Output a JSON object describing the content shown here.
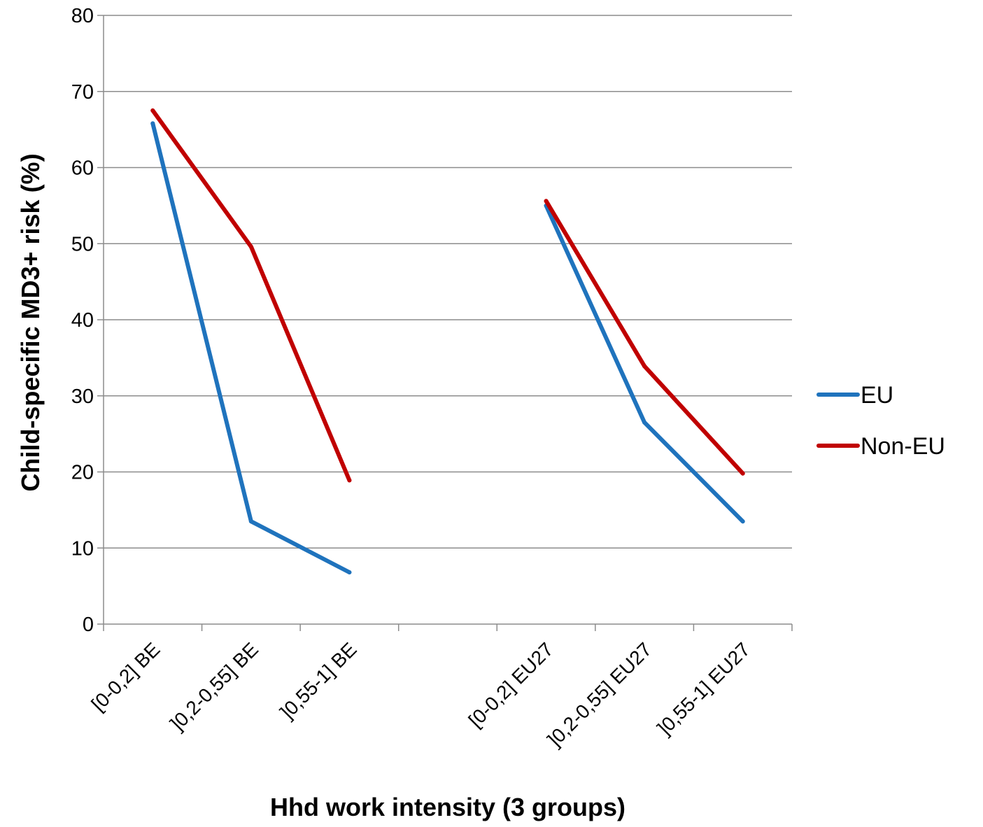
{
  "chart_data": {
    "type": "line",
    "title": "",
    "xlabel": "Hhd work intensity (3 groups)",
    "ylabel": "Child-specific MD3+ risk (%)",
    "ylim": [
      0,
      80
    ],
    "yticks": [
      0,
      10,
      20,
      30,
      40,
      50,
      60,
      70,
      80
    ],
    "grid": "horizontal",
    "legend_position": "right",
    "categories": [
      "[0-0,2] BE",
      "]0,2-0,55] BE",
      "]0,55-1] BE",
      "",
      "[0-0,2] EU27",
      "]0,2-0,55] EU27",
      "]0,55-1] EU27"
    ],
    "series": [
      {
        "name": "EU",
        "color": "#1f73bd",
        "values": [
          65.8,
          13.5,
          6.8,
          null,
          55.0,
          26.5,
          13.5
        ]
      },
      {
        "name": "Non-EU",
        "color": "#c00000",
        "values": [
          67.5,
          49.6,
          18.9,
          null,
          55.6,
          33.9,
          19.8
        ]
      }
    ]
  }
}
